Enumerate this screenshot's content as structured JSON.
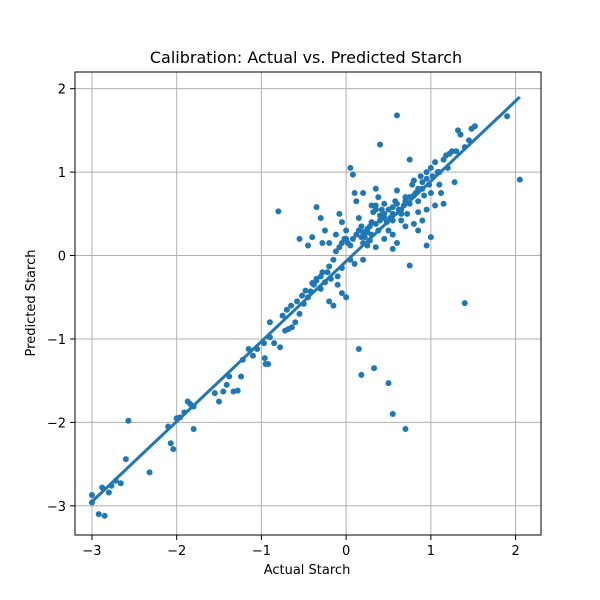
{
  "chart_data": {
    "type": "scatter",
    "title": "Calibration: Actual vs. Predicted Starch",
    "xlabel": "Actual Starch",
    "ylabel": "Predicted Starch",
    "xlim": [
      -3.2,
      2.3
    ],
    "ylim": [
      -3.35,
      2.2
    ],
    "xticks": [
      -3,
      -2,
      -1,
      0,
      1,
      2
    ],
    "yticks": [
      -3,
      -2,
      -1,
      0,
      1,
      2
    ],
    "xtick_labels": [
      "−3",
      "−2",
      "−1",
      "0",
      "1",
      "2"
    ],
    "ytick_labels": [
      "−3",
      "−2",
      "−1",
      "0",
      "1",
      "2"
    ],
    "grid": true,
    "point_color": "#1f77b4",
    "fit_line": {
      "x": [
        -3.0,
        2.05
      ],
      "y": [
        -2.95,
        1.9
      ]
    },
    "points": [
      [
        -3.0,
        -2.87
      ],
      [
        -3.0,
        -2.96
      ],
      [
        -2.92,
        -3.1
      ],
      [
        -2.85,
        -3.12
      ],
      [
        -2.88,
        -2.78
      ],
      [
        -2.8,
        -2.84
      ],
      [
        -2.77,
        -2.76
      ],
      [
        -2.72,
        -2.7
      ],
      [
        -2.66,
        -2.73
      ],
      [
        -2.6,
        -2.44
      ],
      [
        -2.57,
        -1.98
      ],
      [
        -2.32,
        -2.6
      ],
      [
        -2.1,
        -2.05
      ],
      [
        -2.07,
        -2.25
      ],
      [
        -2.04,
        -2.32
      ],
      [
        -2.0,
        -1.95
      ],
      [
        -1.96,
        -1.94
      ],
      [
        -1.91,
        -1.88
      ],
      [
        -1.87,
        -1.75
      ],
      [
        -1.84,
        -1.78
      ],
      [
        -1.8,
        -1.81
      ],
      [
        -1.8,
        -2.08
      ],
      [
        -1.55,
        -1.65
      ],
      [
        -1.5,
        -1.75
      ],
      [
        -1.45,
        -1.63
      ],
      [
        -1.41,
        -1.55
      ],
      [
        -1.38,
        -1.45
      ],
      [
        -1.33,
        -1.63
      ],
      [
        -1.28,
        -1.62
      ],
      [
        -1.24,
        -1.45
      ],
      [
        -1.22,
        -1.25
      ],
      [
        -1.15,
        -1.12
      ],
      [
        -1.1,
        -1.2
      ],
      [
        -1.05,
        -1.12
      ],
      [
        -0.96,
        -1.23
      ],
      [
        -0.97,
        -1.05
      ],
      [
        -0.92,
        -1.3
      ],
      [
        -0.9,
        -0.98
      ],
      [
        -0.95,
        -1.3
      ],
      [
        -0.85,
        -1.05
      ],
      [
        -0.78,
        -1.1
      ],
      [
        -0.72,
        -0.9
      ],
      [
        -0.68,
        -0.88
      ],
      [
        -0.64,
        -0.86
      ],
      [
        -0.6,
        -0.8
      ],
      [
        -0.55,
        -0.7
      ],
      [
        -0.5,
        -0.58
      ],
      [
        -0.45,
        -0.5
      ],
      [
        -0.42,
        -0.43
      ],
      [
        -0.38,
        -0.35
      ],
      [
        -0.35,
        -0.3
      ],
      [
        -0.3,
        -0.25
      ],
      [
        -0.28,
        -0.2
      ],
      [
        -0.22,
        -0.2
      ],
      [
        -0.2,
        -0.13
      ],
      [
        -0.15,
        -0.05
      ],
      [
        -0.12,
        0.05
      ],
      [
        -0.08,
        0.1
      ],
      [
        -0.05,
        0.15
      ],
      [
        -0.02,
        0.2
      ],
      [
        -0.9,
        -0.8
      ],
      [
        -0.75,
        -0.72
      ],
      [
        -0.7,
        -0.65
      ],
      [
        -0.65,
        -0.6
      ],
      [
        -0.58,
        -0.55
      ],
      [
        -0.52,
        -0.48
      ],
      [
        -0.48,
        -0.42
      ],
      [
        -0.4,
        -0.33
      ],
      [
        -0.35,
        -0.28
      ],
      [
        -0.3,
        -0.4
      ],
      [
        -0.25,
        -0.32
      ],
      [
        -0.18,
        -0.28
      ],
      [
        -0.1,
        -0.35
      ],
      [
        -0.05,
        -0.45
      ],
      [
        0.0,
        -0.5
      ],
      [
        -0.2,
        -0.55
      ],
      [
        -0.15,
        -0.6
      ],
      [
        -0.1,
        -0.25
      ],
      [
        -0.05,
        -0.15
      ],
      [
        0.05,
        -0.05
      ],
      [
        -0.8,
        0.53
      ],
      [
        -0.55,
        0.2
      ],
      [
        -0.45,
        0.12
      ],
      [
        -0.4,
        0.22
      ],
      [
        -0.35,
        0.58
      ],
      [
        -0.3,
        0.45
      ],
      [
        -0.25,
        0.3
      ],
      [
        -0.28,
        0.15
      ],
      [
        -0.2,
        0.15
      ],
      [
        -0.12,
        0.25
      ],
      [
        -0.08,
        0.5
      ],
      [
        -0.05,
        0.4
      ],
      [
        0.0,
        0.3
      ],
      [
        0.05,
        1.05
      ],
      [
        0.08,
        0.97
      ],
      [
        0.1,
        0.75
      ],
      [
        0.12,
        0.65
      ],
      [
        0.15,
        0.45
      ],
      [
        0.18,
        0.35
      ],
      [
        0.2,
        0.28
      ],
      [
        0.22,
        0.22
      ],
      [
        0.25,
        0.32
      ],
      [
        0.28,
        0.18
      ],
      [
        0.3,
        0.4
      ],
      [
        0.32,
        0.52
      ],
      [
        0.35,
        0.6
      ],
      [
        0.38,
        0.7
      ],
      [
        0.4,
        0.48
      ],
      [
        0.42,
        0.55
      ],
      [
        0.45,
        0.62
      ],
      [
        0.48,
        0.4
      ],
      [
        0.5,
        0.3
      ],
      [
        0.52,
        0.45
      ],
      [
        0.55,
        0.5
      ],
      [
        0.58,
        0.65
      ],
      [
        0.6,
        0.78
      ],
      [
        0.62,
        0.55
      ],
      [
        0.65,
        0.42
      ],
      [
        0.68,
        0.6
      ],
      [
        0.7,
        0.7
      ],
      [
        0.72,
        0.5
      ],
      [
        0.75,
        0.62
      ],
      [
        0.78,
        0.85
      ],
      [
        0.8,
        0.9
      ],
      [
        0.82,
        0.75
      ],
      [
        0.85,
        0.65
      ],
      [
        0.88,
        0.95
      ],
      [
        0.9,
        0.8
      ],
      [
        0.92,
        0.72
      ],
      [
        0.95,
        1.0
      ],
      [
        0.98,
        0.85
      ],
      [
        1.0,
        1.05
      ],
      [
        1.02,
        0.95
      ],
      [
        1.05,
        1.12
      ],
      [
        1.08,
        1.0
      ],
      [
        1.1,
        0.85
      ],
      [
        1.12,
        0.75
      ],
      [
        1.15,
        1.15
      ],
      [
        1.18,
        1.2
      ],
      [
        1.2,
        1.05
      ],
      [
        1.22,
        1.22
      ],
      [
        1.25,
        1.25
      ],
      [
        1.28,
        0.88
      ],
      [
        1.3,
        1.25
      ],
      [
        1.32,
        1.5
      ],
      [
        1.35,
        1.45
      ],
      [
        1.4,
        1.3
      ],
      [
        1.45,
        1.38
      ],
      [
        1.48,
        1.52
      ],
      [
        1.52,
        1.55
      ],
      [
        0.0,
        0.2
      ],
      [
        0.02,
        0.15
      ],
      [
        0.05,
        0.12
      ],
      [
        0.08,
        0.2
      ],
      [
        0.12,
        0.25
      ],
      [
        0.15,
        0.3
      ],
      [
        0.18,
        0.22
      ],
      [
        0.2,
        0.15
      ],
      [
        0.25,
        0.28
      ],
      [
        0.28,
        0.35
      ],
      [
        0.3,
        0.25
      ],
      [
        0.35,
        0.38
      ],
      [
        0.38,
        0.3
      ],
      [
        0.4,
        0.42
      ],
      [
        0.45,
        0.5
      ],
      [
        0.5,
        0.55
      ],
      [
        0.55,
        0.58
      ],
      [
        0.6,
        0.62
      ],
      [
        0.65,
        0.55
      ],
      [
        0.7,
        0.65
      ],
      [
        0.75,
        0.7
      ],
      [
        0.8,
        0.72
      ],
      [
        0.85,
        0.8
      ],
      [
        0.9,
        0.88
      ],
      [
        0.95,
        0.92
      ],
      [
        0.3,
        0.6
      ],
      [
        0.35,
        0.55
      ],
      [
        0.45,
        0.45
      ],
      [
        0.55,
        0.42
      ],
      [
        0.65,
        0.5
      ],
      [
        0.25,
        0.12
      ],
      [
        0.35,
        0.1
      ],
      [
        0.45,
        0.2
      ],
      [
        0.55,
        0.25
      ],
      [
        0.6,
        0.15
      ],
      [
        0.4,
        1.33
      ],
      [
        0.6,
        1.68
      ],
      [
        0.75,
        1.15
      ],
      [
        0.2,
        0.75
      ],
      [
        0.35,
        0.8
      ],
      [
        0.7,
        0.35
      ],
      [
        0.8,
        0.38
      ],
      [
        0.85,
        0.3
      ],
      [
        0.9,
        0.42
      ],
      [
        1.0,
        0.22
      ],
      [
        0.95,
        0.12
      ],
      [
        0.75,
        -0.12
      ],
      [
        0.55,
        0.08
      ],
      [
        0.1,
        -0.1
      ],
      [
        0.2,
        -0.05
      ],
      [
        0.15,
        -1.12
      ],
      [
        0.18,
        -1.43
      ],
      [
        0.33,
        -1.35
      ],
      [
        0.5,
        -1.53
      ],
      [
        0.55,
        -1.9
      ],
      [
        0.7,
        -2.08
      ],
      [
        1.4,
        -0.57
      ],
      [
        2.05,
        0.91
      ],
      [
        1.9,
        1.67
      ],
      [
        1.1,
        1.0
      ],
      [
        1.0,
        0.75
      ],
      [
        1.05,
        0.6
      ],
      [
        1.15,
        0.62
      ],
      [
        0.95,
        0.55
      ],
      [
        0.85,
        0.52
      ]
    ]
  }
}
